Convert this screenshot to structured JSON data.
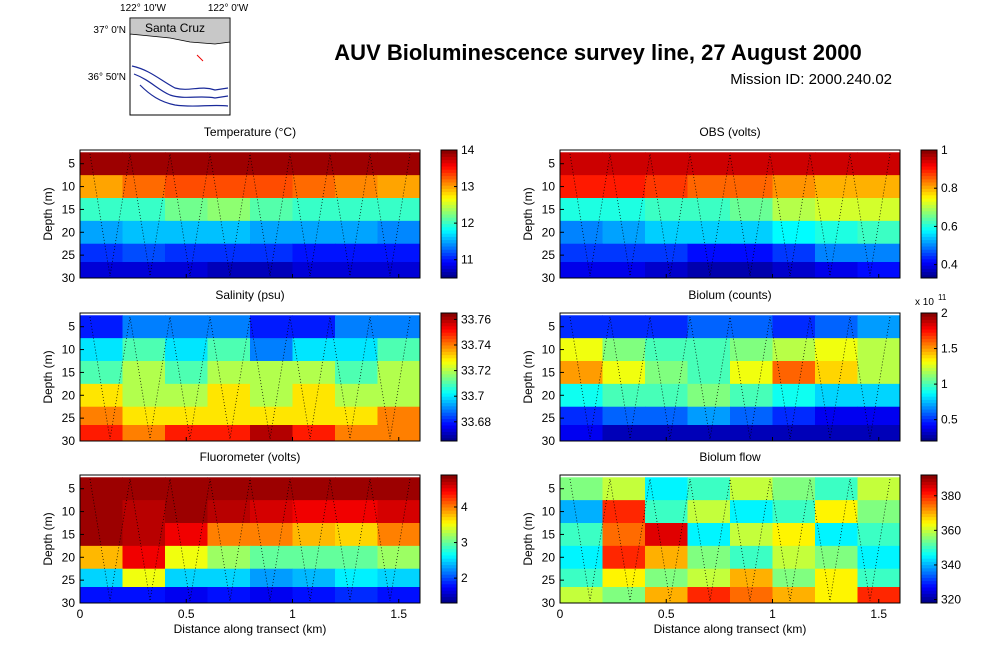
{
  "title": "AUV Bioluminescence survey line, 27 August 2000",
  "subtitle": "Mission ID: 2000.240.02",
  "inset": {
    "lon_labels": [
      "122° 10'W",
      "122° 0'W"
    ],
    "lat_labels": [
      "37° 0'N",
      "36° 50'N"
    ],
    "place": "Santa Cruz"
  },
  "chart_data": [
    {
      "type": "heatmap",
      "title": "Temperature (°C)",
      "ylabel": "Depth (m)",
      "x": [
        0.1,
        0.3,
        0.5,
        0.7,
        0.9,
        1.1,
        1.3,
        1.5
      ],
      "y": [
        5,
        10,
        15,
        20,
        25,
        28
      ],
      "z": [
        [
          13.9,
          13.9,
          13.9,
          13.9,
          13.9,
          13.9,
          13.9,
          13.9
        ],
        [
          13,
          13.2,
          13.3,
          13.3,
          13.3,
          13.2,
          13.1,
          13
        ],
        [
          12,
          12,
          12.2,
          12.3,
          12.1,
          12,
          12,
          12
        ],
        [
          11.5,
          11.6,
          11.6,
          11.6,
          11.5,
          11.5,
          11.5,
          11.4
        ],
        [
          11.1,
          11.2,
          11.1,
          11.1,
          11.1,
          11,
          11,
          11
        ],
        [
          10.8,
          10.8,
          10.8,
          10.7,
          10.7,
          10.8,
          10.8,
          10.8
        ]
      ],
      "xlim": [
        0,
        1.6
      ],
      "xticks": [
        0,
        0.5,
        1,
        1.5
      ],
      "ylim": [
        2,
        30
      ],
      "yticks": [
        5,
        10,
        15,
        20,
        25,
        30
      ],
      "y_reversed": true,
      "zlim": [
        10.5,
        14
      ],
      "zticks": [
        11,
        12,
        13,
        14
      ],
      "colormap": "jet"
    },
    {
      "type": "heatmap",
      "title": "OBS (volts)",
      "ylabel": "Depth (m)",
      "x": [
        0.1,
        0.3,
        0.5,
        0.7,
        0.9,
        1.1,
        1.3,
        1.5
      ],
      "y": [
        5,
        10,
        15,
        20,
        25,
        28
      ],
      "z": [
        [
          0.95,
          0.95,
          0.95,
          0.95,
          0.95,
          0.95,
          0.95,
          0.95
        ],
        [
          0.9,
          0.9,
          0.88,
          0.85,
          0.85,
          0.82,
          0.8,
          0.8
        ],
        [
          0.6,
          0.6,
          0.62,
          0.62,
          0.65,
          0.7,
          0.72,
          0.72
        ],
        [
          0.5,
          0.52,
          0.55,
          0.55,
          0.55,
          0.58,
          0.6,
          0.62
        ],
        [
          0.45,
          0.45,
          0.45,
          0.42,
          0.42,
          0.45,
          0.5,
          0.5
        ],
        [
          0.4,
          0.4,
          0.38,
          0.36,
          0.36,
          0.38,
          0.4,
          0.42
        ]
      ],
      "xlim": [
        0,
        1.6
      ],
      "xticks": [
        0,
        0.5,
        1,
        1.5
      ],
      "ylim": [
        2,
        30
      ],
      "yticks": [
        5,
        10,
        15,
        20,
        25,
        30
      ],
      "y_reversed": true,
      "zlim": [
        0.33,
        1
      ],
      "zticks": [
        0.4,
        0.6,
        0.8,
        1
      ],
      "colormap": "jet"
    },
    {
      "type": "heatmap",
      "title": "Salinity (psu)",
      "ylabel": "Depth (m)",
      "x": [
        0.1,
        0.3,
        0.5,
        0.7,
        0.9,
        1.1,
        1.3,
        1.5
      ],
      "y": [
        5,
        10,
        15,
        20,
        25,
        28
      ],
      "z": [
        [
          33.68,
          33.69,
          33.69,
          33.69,
          33.68,
          33.68,
          33.69,
          33.69
        ],
        [
          33.7,
          33.71,
          33.7,
          33.71,
          33.69,
          33.7,
          33.7,
          33.71
        ],
        [
          33.71,
          33.72,
          33.71,
          33.72,
          33.72,
          33.72,
          33.71,
          33.72
        ],
        [
          33.73,
          33.72,
          33.72,
          33.73,
          33.72,
          33.73,
          33.72,
          33.72
        ],
        [
          33.74,
          33.73,
          33.73,
          33.73,
          33.73,
          33.73,
          33.73,
          33.74
        ],
        [
          33.75,
          33.74,
          33.75,
          33.75,
          33.76,
          33.75,
          33.74,
          33.74
        ]
      ],
      "xlim": [
        0,
        1.6
      ],
      "xticks": [
        0,
        0.5,
        1,
        1.5
      ],
      "ylim": [
        2,
        30
      ],
      "yticks": [
        5,
        10,
        15,
        20,
        25,
        30
      ],
      "y_reversed": true,
      "zlim": [
        33.665,
        33.765
      ],
      "zticks": [
        33.68,
        33.7,
        33.72,
        33.74,
        33.76
      ],
      "colormap": "jet"
    },
    {
      "type": "heatmap",
      "title": "Biolum (counts)",
      "ylabel": "Depth (m)",
      "x": [
        0.1,
        0.3,
        0.5,
        0.7,
        0.9,
        1.1,
        1.3,
        1.5
      ],
      "y": [
        5,
        10,
        15,
        20,
        25,
        28
      ],
      "z": [
        [
          0.5,
          0.5,
          0.5,
          0.6,
          0.6,
          0.5,
          0.6,
          0.7
        ],
        [
          1.3,
          1.1,
          1,
          1,
          1.1,
          1.2,
          1.3,
          1.2
        ],
        [
          1.5,
          1.3,
          1.1,
          1,
          1.3,
          1.6,
          1.4,
          1.2
        ],
        [
          0.9,
          1,
          1,
          1.1,
          1,
          0.9,
          0.8,
          0.8
        ],
        [
          0.5,
          0.6,
          0.6,
          0.7,
          0.6,
          0.5,
          0.4,
          0.4
        ],
        [
          0.4,
          0.3,
          0.3,
          0.3,
          0.3,
          0.3,
          0.3,
          0.3
        ]
      ],
      "xlim": [
        0,
        1.6
      ],
      "xticks": [
        0,
        0.5,
        1,
        1.5
      ],
      "ylim": [
        2,
        30
      ],
      "yticks": [
        5,
        10,
        15,
        20,
        25,
        30
      ],
      "y_reversed": true,
      "zlim": [
        0.2,
        2
      ],
      "zticks": [
        0.5,
        1,
        1.5,
        2
      ],
      "z_multiplier": "x 10",
      "z_exponent": "11",
      "colormap": "jet"
    },
    {
      "type": "heatmap",
      "title": "Fluorometer (volts)",
      "ylabel": "Depth (m)",
      "xlabel": "Distance along transect (km)",
      "x": [
        0.1,
        0.3,
        0.5,
        0.7,
        0.9,
        1.1,
        1.3,
        1.5
      ],
      "y": [
        5,
        10,
        15,
        20,
        25,
        28
      ],
      "z": [
        [
          4.8,
          4.8,
          4.8,
          4.8,
          4.8,
          4.8,
          4.8,
          4.8
        ],
        [
          4.8,
          4.7,
          4.8,
          4.7,
          4.6,
          4.5,
          4.5,
          4.6
        ],
        [
          4.8,
          4.7,
          4.5,
          4,
          4,
          3.8,
          3.7,
          4
        ],
        [
          3.8,
          4.5,
          3.5,
          3.2,
          3,
          3,
          3,
          3.2
        ],
        [
          2.5,
          3.5,
          2.5,
          2.5,
          2.3,
          2.4,
          2.6,
          2.5
        ],
        [
          1.8,
          1.8,
          1.7,
          1.8,
          1.7,
          1.8,
          1.9,
          1.8
        ]
      ],
      "xlim": [
        0,
        1.6
      ],
      "xticks": [
        0,
        0.5,
        1,
        1.5
      ],
      "ylim": [
        2,
        30
      ],
      "yticks": [
        5,
        10,
        15,
        20,
        25,
        30
      ],
      "y_reversed": true,
      "zlim": [
        1.3,
        4.9
      ],
      "zticks": [
        2,
        3,
        4
      ],
      "colormap": "jet"
    },
    {
      "type": "heatmap",
      "title": "Biolum flow",
      "ylabel": "Depth (m)",
      "xlabel": "Distance along transect (km)",
      "x": [
        0.1,
        0.3,
        0.5,
        0.7,
        0.9,
        1.1,
        1.3,
        1.5
      ],
      "y": [
        5,
        10,
        15,
        20,
        25,
        28
      ],
      "z": [
        [
          355,
          360,
          345,
          350,
          360,
          355,
          350,
          360
        ],
        [
          340,
          380,
          350,
          360,
          345,
          350,
          365,
          355
        ],
        [
          350,
          375,
          385,
          345,
          360,
          365,
          345,
          350
        ],
        [
          345,
          380,
          370,
          355,
          350,
          360,
          355,
          345
        ],
        [
          350,
          365,
          355,
          360,
          370,
          355,
          365,
          350
        ],
        [
          360,
          355,
          370,
          380,
          375,
          370,
          365,
          380
        ]
      ],
      "xlim": [
        0,
        1.6
      ],
      "xticks": [
        0,
        0.5,
        1,
        1.5
      ],
      "ylim": [
        2,
        30
      ],
      "yticks": [
        5,
        10,
        15,
        20,
        25,
        30
      ],
      "y_reversed": true,
      "zlim": [
        318,
        392
      ],
      "zticks": [
        320,
        340,
        360,
        380
      ],
      "colormap": "jet"
    }
  ]
}
